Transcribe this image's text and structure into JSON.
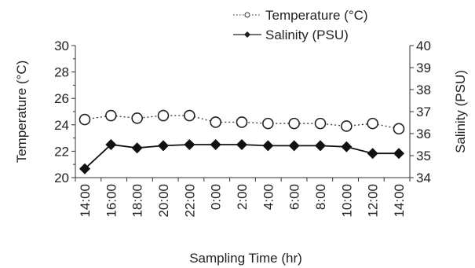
{
  "chart_data": {
    "type": "line",
    "categories": [
      "14:00",
      "16:00",
      "18:00",
      "20:00",
      "22:00",
      "0:00",
      "2:00",
      "4:00",
      "6:00",
      "8:00",
      "10:00",
      "12:00",
      "14:00"
    ],
    "xlabel": "Sampling Time (hr)",
    "y_left": {
      "label": "Temperature (°C)",
      "ylim": [
        20,
        30
      ],
      "ticks": [
        "20",
        "22",
        "24",
        "26",
        "28",
        "30"
      ]
    },
    "y_right": {
      "label": "Salinity (PSU)",
      "ylim": [
        34,
        40
      ],
      "ticks": [
        "34",
        "35",
        "36",
        "37",
        "38",
        "39",
        "40"
      ]
    },
    "series": [
      {
        "name": "Temperature (°C)",
        "axis": "left",
        "style": "dotted-open-circle",
        "values": [
          24.4,
          24.7,
          24.5,
          24.7,
          24.7,
          24.2,
          24.2,
          24.1,
          24.1,
          24.1,
          23.9,
          24.1,
          23.7
        ]
      },
      {
        "name": "Salinity (PSU)",
        "axis": "right",
        "style": "solid-filled-diamond",
        "values": [
          34.4,
          35.5,
          35.35,
          35.45,
          35.5,
          35.5,
          35.5,
          35.45,
          35.45,
          35.45,
          35.4,
          35.1,
          35.1
        ]
      }
    ],
    "legend_position": "top-right",
    "grid": false
  }
}
